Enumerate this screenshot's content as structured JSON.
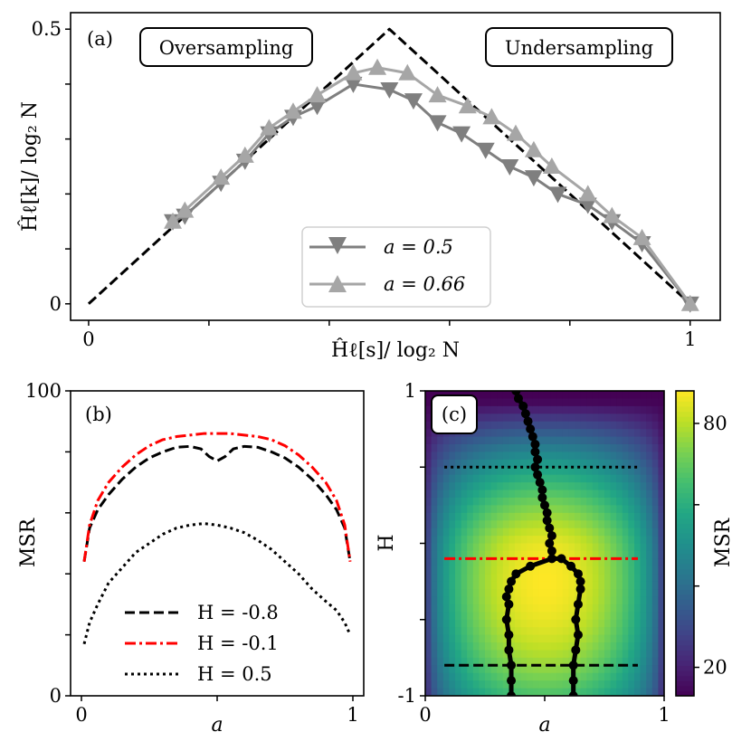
{
  "chart_data": [
    {
      "panel": "(a)",
      "type": "line",
      "xlabel": "Ĥℓ[s]/ log₂ N",
      "ylabel": "Ĥℓ[k]/ log₂ N",
      "xlim": [
        -0.03,
        1.05
      ],
      "ylim": [
        -0.03,
        0.53
      ],
      "xticks": [
        0,
        0.2,
        0.4,
        0.6,
        0.8,
        1
      ],
      "xtick_labels": [
        "0",
        "",
        "",
        "",
        "",
        "1"
      ],
      "yticks": [
        0,
        0.1,
        0.2,
        0.3,
        0.4,
        0.5
      ],
      "ytick_labels": [
        "0",
        "",
        "",
        "",
        "",
        "0.5"
      ],
      "annotations": [
        "Oversampling",
        "Undersampling"
      ],
      "legend_position": "lower center",
      "series": [
        {
          "name": "a = 0.5",
          "color": "#7f7f7f",
          "marker": "triangle-down",
          "x": [
            0.14,
            0.16,
            0.22,
            0.26,
            0.3,
            0.34,
            0.38,
            0.44,
            0.5,
            0.54,
            0.58,
            0.62,
            0.66,
            0.7,
            0.74,
            0.78,
            0.83,
            0.87,
            0.92,
            1.0
          ],
          "y": [
            0.15,
            0.16,
            0.22,
            0.26,
            0.31,
            0.34,
            0.36,
            0.4,
            0.39,
            0.37,
            0.33,
            0.31,
            0.28,
            0.25,
            0.23,
            0.2,
            0.18,
            0.15,
            0.11,
            0.0
          ]
        },
        {
          "name": "a = 0.66",
          "color": "#a6a6a6",
          "marker": "triangle-up",
          "x": [
            0.14,
            0.16,
            0.22,
            0.26,
            0.3,
            0.34,
            0.38,
            0.44,
            0.48,
            0.53,
            0.58,
            0.63,
            0.67,
            0.71,
            0.74,
            0.77,
            0.83,
            0.87,
            0.92,
            1.0
          ],
          "y": [
            0.15,
            0.17,
            0.23,
            0.27,
            0.32,
            0.35,
            0.38,
            0.42,
            0.43,
            0.42,
            0.38,
            0.36,
            0.34,
            0.31,
            0.28,
            0.25,
            0.2,
            0.16,
            0.12,
            0.0
          ]
        },
        {
          "name": "",
          "color": "#000000",
          "style": "dashed",
          "x": [
            0,
            0.5,
            1
          ],
          "y": [
            0,
            0.5,
            0
          ]
        }
      ]
    },
    {
      "panel": "(b)",
      "type": "line",
      "xlabel": "a",
      "ylabel": "MSR",
      "xlim": [
        -0.04,
        1.04
      ],
      "ylim": [
        0,
        100
      ],
      "xticks": [
        0,
        0.5,
        1
      ],
      "xtick_labels": [
        "0",
        "",
        "1"
      ],
      "yticks": [
        0,
        20,
        40,
        60,
        80,
        100
      ],
      "ytick_labels": [
        "0",
        "",
        "",
        "",
        "",
        "100"
      ],
      "legend_position": "lower center",
      "series": [
        {
          "name": "H = -0.8",
          "color": "#000000",
          "style": "dashed",
          "x": [
            0.01,
            0.03,
            0.06,
            0.1,
            0.15,
            0.2,
            0.25,
            0.3,
            0.35,
            0.4,
            0.44,
            0.47,
            0.5,
            0.53,
            0.56,
            0.6,
            0.65,
            0.7,
            0.75,
            0.8,
            0.85,
            0.9,
            0.94,
            0.97,
            0.99
          ],
          "y": [
            44,
            55,
            61,
            66,
            71,
            75,
            78,
            80,
            81.5,
            81.8,
            81,
            78.5,
            77,
            78.5,
            81,
            81.8,
            81.5,
            80,
            78,
            75,
            71,
            66,
            61,
            55,
            44
          ]
        },
        {
          "name": "H = -0.1",
          "color": "#ff0000",
          "style": "dashdot",
          "x": [
            0.01,
            0.03,
            0.06,
            0.1,
            0.15,
            0.2,
            0.25,
            0.3,
            0.35,
            0.4,
            0.45,
            0.5,
            0.55,
            0.6,
            0.65,
            0.7,
            0.75,
            0.8,
            0.85,
            0.9,
            0.94,
            0.97,
            0.99
          ],
          "y": [
            44,
            56,
            64,
            70,
            75,
            79,
            82,
            84,
            85,
            85.5,
            86,
            86,
            86,
            85.5,
            85,
            84,
            82,
            79,
            75,
            70,
            64,
            56,
            44
          ]
        },
        {
          "name": "H = 0.5",
          "color": "#000000",
          "style": "dotted",
          "x": [
            0.01,
            0.03,
            0.06,
            0.1,
            0.15,
            0.2,
            0.25,
            0.3,
            0.35,
            0.4,
            0.45,
            0.5,
            0.55,
            0.6,
            0.65,
            0.7,
            0.75,
            0.8,
            0.85,
            0.9,
            0.94,
            0.97,
            0.99
          ],
          "y": [
            17,
            24,
            30,
            37,
            42,
            47,
            50,
            53,
            55,
            56,
            56.5,
            56,
            55,
            53.5,
            51,
            48,
            44,
            40,
            35,
            31,
            28,
            24,
            20
          ]
        }
      ]
    },
    {
      "panel": "(c)",
      "type": "heatmap",
      "xlabel": "a",
      "ylabel": "H",
      "xlim": [
        0,
        1
      ],
      "ylim": [
        -1,
        1
      ],
      "xticks": [
        0,
        0.5,
        1
      ],
      "xtick_labels": [
        "0",
        "",
        "1"
      ],
      "yticks": [
        -1,
        -0.5,
        0,
        0.5,
        1
      ],
      "ytick_labels": [
        "-1",
        "",
        "",
        "",
        "1"
      ],
      "colorbar_label": "MSR",
      "colorbar_ticks": [
        20,
        40,
        60,
        80
      ],
      "colorbar_tick_labels": [
        "20",
        "",
        "",
        "80"
      ],
      "colormap": "viridis",
      "value_range": [
        13,
        88
      ],
      "horizontal_lines": [
        {
          "y": 0.5,
          "style": "dotted",
          "color": "#000000"
        },
        {
          "y": -0.1,
          "style": "dashdot",
          "color": "#ff0000"
        },
        {
          "y": -0.8,
          "style": "dashed",
          "color": "#000000"
        }
      ],
      "ridge_points": [
        {
          "a": 0.38,
          "H": 1.0
        },
        {
          "a": 0.39,
          "H": 0.95
        },
        {
          "a": 0.41,
          "H": 0.9
        },
        {
          "a": 0.42,
          "H": 0.85
        },
        {
          "a": 0.43,
          "H": 0.8
        },
        {
          "a": 0.44,
          "H": 0.75
        },
        {
          "a": 0.45,
          "H": 0.7
        },
        {
          "a": 0.46,
          "H": 0.65
        },
        {
          "a": 0.46,
          "H": 0.6
        },
        {
          "a": 0.47,
          "H": 0.55
        },
        {
          "a": 0.46,
          "H": 0.5
        },
        {
          "a": 0.47,
          "H": 0.45
        },
        {
          "a": 0.48,
          "H": 0.4
        },
        {
          "a": 0.49,
          "H": 0.35
        },
        {
          "a": 0.49,
          "H": 0.3
        },
        {
          "a": 0.5,
          "H": 0.25
        },
        {
          "a": 0.51,
          "H": 0.2
        },
        {
          "a": 0.51,
          "H": 0.15
        },
        {
          "a": 0.52,
          "H": 0.1
        },
        {
          "a": 0.53,
          "H": 0.05
        },
        {
          "a": 0.52,
          "H": 0.0
        },
        {
          "a": 0.53,
          "H": -0.05
        },
        {
          "a": 0.53,
          "H": -0.1
        },
        {
          "a": 0.44,
          "H": -0.15
        },
        {
          "a": 0.38,
          "H": -0.2
        },
        {
          "a": 0.36,
          "H": -0.25
        },
        {
          "a": 0.35,
          "H": -0.3
        },
        {
          "a": 0.34,
          "H": -0.35
        },
        {
          "a": 0.35,
          "H": -0.4
        },
        {
          "a": 0.34,
          "H": -0.5
        },
        {
          "a": 0.35,
          "H": -0.6
        },
        {
          "a": 0.35,
          "H": -0.7
        },
        {
          "a": 0.36,
          "H": -0.8
        },
        {
          "a": 0.36,
          "H": -0.9
        },
        {
          "a": 0.36,
          "H": -1.0
        },
        {
          "a": 0.57,
          "H": -0.1
        },
        {
          "a": 0.61,
          "H": -0.15
        },
        {
          "a": 0.64,
          "H": -0.2
        },
        {
          "a": 0.65,
          "H": -0.25
        },
        {
          "a": 0.65,
          "H": -0.3
        },
        {
          "a": 0.64,
          "H": -0.4
        },
        {
          "a": 0.63,
          "H": -0.5
        },
        {
          "a": 0.64,
          "H": -0.6
        },
        {
          "a": 0.63,
          "H": -0.7
        },
        {
          "a": 0.62,
          "H": -0.8
        },
        {
          "a": 0.62,
          "H": -0.9
        },
        {
          "a": 0.62,
          "H": -1.0
        }
      ]
    }
  ]
}
